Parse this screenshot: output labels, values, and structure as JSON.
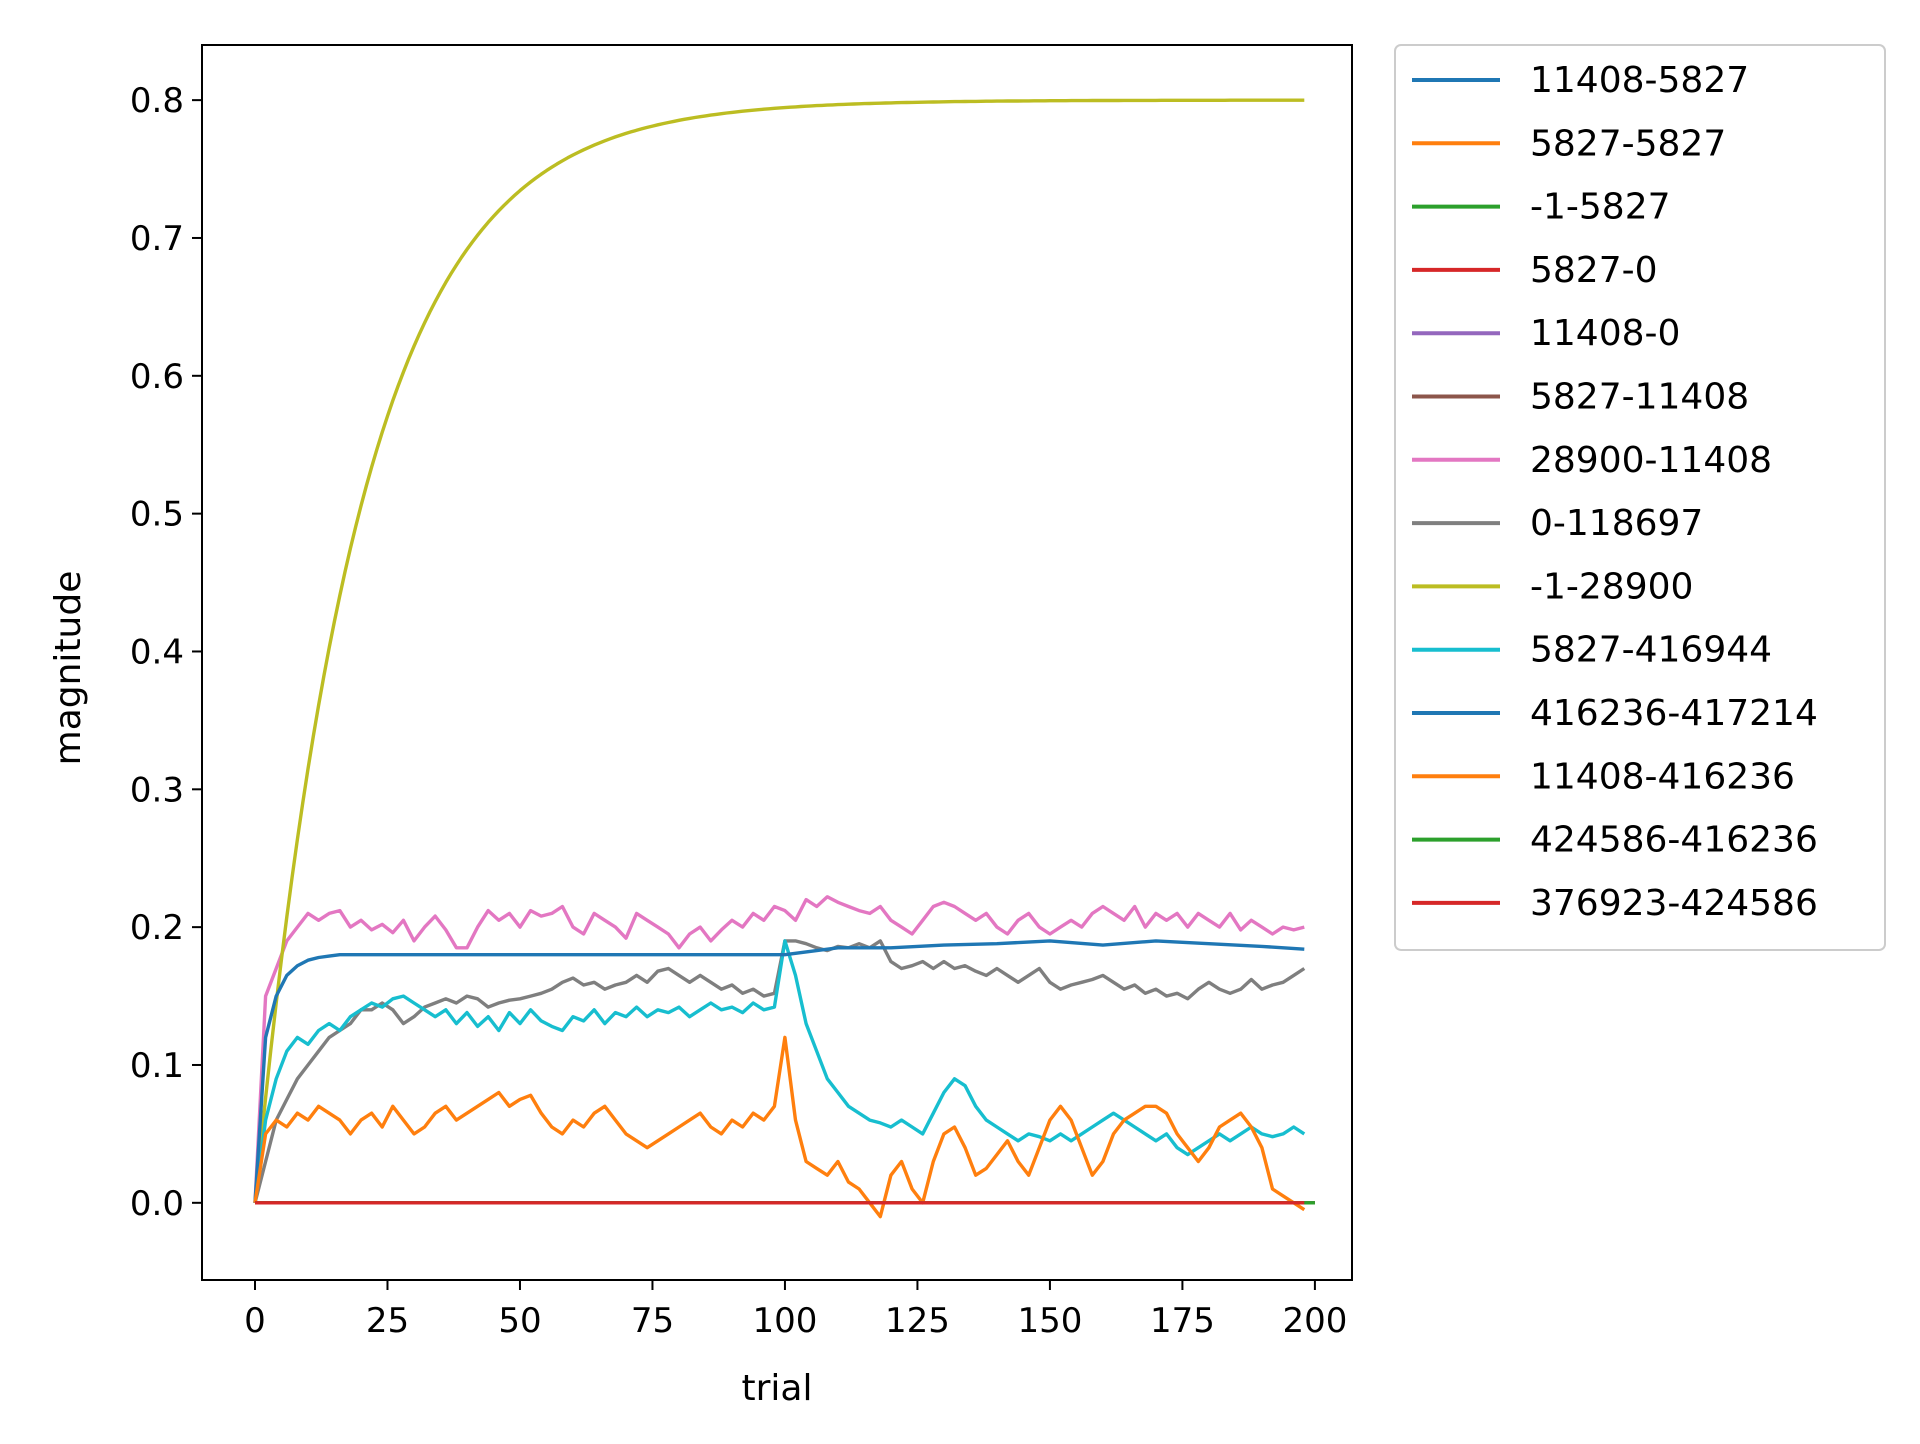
{
  "chart_data": {
    "type": "line",
    "xlabel": "trial",
    "ylabel": "magnitude",
    "xlim": [
      -10,
      207
    ],
    "ylim": [
      -0.056,
      0.84
    ],
    "xticks": [
      0,
      25,
      50,
      75,
      100,
      125,
      150,
      175,
      200
    ],
    "yticks": [
      0.0,
      0.1,
      0.2,
      0.3,
      0.4,
      0.5,
      0.6,
      0.7,
      0.8
    ],
    "grid": false,
    "legend_position": "outside-top-right",
    "series": [
      {
        "name": "11408-5827",
        "color": "#1f77b4",
        "x": [
          0,
          200
        ],
        "y": [
          0,
          0
        ]
      },
      {
        "name": "5827-5827",
        "color": "#ff7f0e",
        "x": [
          0,
          200
        ],
        "y": [
          0,
          0
        ]
      },
      {
        "name": "-1-5827",
        "color": "#2ca02c",
        "x": [
          0,
          200
        ],
        "y": [
          0,
          0
        ]
      },
      {
        "name": "5827-0",
        "color": "#d62728",
        "x": [
          0,
          200
        ],
        "y": [
          0,
          0
        ]
      },
      {
        "name": "11408-0",
        "color": "#9467bd",
        "x": [
          0,
          200
        ],
        "y": [
          0,
          0
        ]
      },
      {
        "name": "5827-11408",
        "color": "#8c564b",
        "x": [
          0,
          200
        ],
        "y": [
          0,
          0
        ]
      },
      {
        "name": "28900-11408",
        "color": "#e377c2",
        "x": [
          0,
          2,
          4,
          6,
          8,
          10,
          12,
          14,
          16,
          18,
          20,
          22,
          24,
          26,
          28,
          30,
          32,
          34,
          36,
          38,
          40,
          42,
          44,
          46,
          48,
          50,
          52,
          54,
          56,
          58,
          60,
          62,
          64,
          66,
          68,
          70,
          72,
          74,
          76,
          78,
          80,
          82,
          84,
          86,
          88,
          90,
          92,
          94,
          96,
          98,
          100,
          102,
          104,
          106,
          108,
          110,
          112,
          114,
          116,
          118,
          120,
          122,
          124,
          126,
          128,
          130,
          132,
          134,
          136,
          138,
          140,
          142,
          144,
          146,
          148,
          150,
          152,
          154,
          156,
          158,
          160,
          162,
          164,
          166,
          168,
          170,
          172,
          174,
          176,
          178,
          180,
          182,
          184,
          186,
          188,
          190,
          192,
          194,
          196,
          198
        ],
        "y": [
          0,
          0.15,
          0.17,
          0.19,
          0.2,
          0.21,
          0.205,
          0.21,
          0.212,
          0.2,
          0.205,
          0.198,
          0.202,
          0.196,
          0.205,
          0.19,
          0.2,
          0.208,
          0.198,
          0.185,
          0.185,
          0.2,
          0.212,
          0.205,
          0.21,
          0.2,
          0.212,
          0.208,
          0.21,
          0.215,
          0.2,
          0.195,
          0.21,
          0.205,
          0.2,
          0.192,
          0.21,
          0.205,
          0.2,
          0.195,
          0.185,
          0.195,
          0.2,
          0.19,
          0.198,
          0.205,
          0.2,
          0.21,
          0.205,
          0.215,
          0.212,
          0.205,
          0.22,
          0.215,
          0.222,
          0.218,
          0.215,
          0.212,
          0.21,
          0.215,
          0.205,
          0.2,
          0.195,
          0.205,
          0.215,
          0.218,
          0.215,
          0.21,
          0.205,
          0.21,
          0.2,
          0.195,
          0.205,
          0.21,
          0.2,
          0.195,
          0.2,
          0.205,
          0.2,
          0.21,
          0.215,
          0.21,
          0.205,
          0.215,
          0.2,
          0.21,
          0.205,
          0.21,
          0.2,
          0.21,
          0.205,
          0.2,
          0.21,
          0.198,
          0.205,
          0.2,
          0.195,
          0.2,
          0.198,
          0.2
        ]
      },
      {
        "name": "0-118697",
        "color": "#7f7f7f",
        "x": [
          0,
          2,
          4,
          6,
          8,
          10,
          12,
          14,
          16,
          18,
          20,
          22,
          24,
          26,
          28,
          30,
          32,
          34,
          36,
          38,
          40,
          42,
          44,
          46,
          48,
          50,
          52,
          54,
          56,
          58,
          60,
          62,
          64,
          66,
          68,
          70,
          72,
          74,
          76,
          78,
          80,
          82,
          84,
          86,
          88,
          90,
          92,
          94,
          96,
          98,
          100,
          102,
          104,
          106,
          108,
          110,
          112,
          114,
          116,
          118,
          120,
          122,
          124,
          126,
          128,
          130,
          132,
          134,
          136,
          138,
          140,
          142,
          144,
          146,
          148,
          150,
          152,
          154,
          156,
          158,
          160,
          162,
          164,
          166,
          168,
          170,
          172,
          174,
          176,
          178,
          180,
          182,
          184,
          186,
          188,
          190,
          192,
          194,
          196,
          198
        ],
        "y": [
          0,
          0.03,
          0.06,
          0.075,
          0.09,
          0.1,
          0.11,
          0.12,
          0.125,
          0.13,
          0.14,
          0.14,
          0.145,
          0.14,
          0.13,
          0.135,
          0.142,
          0.145,
          0.148,
          0.145,
          0.15,
          0.148,
          0.142,
          0.145,
          0.147,
          0.148,
          0.15,
          0.152,
          0.155,
          0.16,
          0.163,
          0.158,
          0.16,
          0.155,
          0.158,
          0.16,
          0.165,
          0.16,
          0.168,
          0.17,
          0.165,
          0.16,
          0.165,
          0.16,
          0.155,
          0.158,
          0.152,
          0.155,
          0.15,
          0.152,
          0.19,
          0.19,
          0.188,
          0.185,
          0.183,
          0.186,
          0.185,
          0.188,
          0.185,
          0.19,
          0.175,
          0.17,
          0.172,
          0.175,
          0.17,
          0.175,
          0.17,
          0.172,
          0.168,
          0.165,
          0.17,
          0.165,
          0.16,
          0.165,
          0.17,
          0.16,
          0.155,
          0.158,
          0.16,
          0.162,
          0.165,
          0.16,
          0.155,
          0.158,
          0.152,
          0.155,
          0.15,
          0.152,
          0.148,
          0.155,
          0.16,
          0.155,
          0.152,
          0.155,
          0.162,
          0.155,
          0.158,
          0.16,
          0.165,
          0.17
        ]
      },
      {
        "name": "-1-28900",
        "color": "#bcbd22",
        "generator": "saturating",
        "y_max": 0.8,
        "tau": 20
      },
      {
        "name": "5827-416944",
        "color": "#17becf",
        "x": [
          0,
          2,
          4,
          6,
          8,
          10,
          12,
          14,
          16,
          18,
          20,
          22,
          24,
          26,
          28,
          30,
          32,
          34,
          36,
          38,
          40,
          42,
          44,
          46,
          48,
          50,
          52,
          54,
          56,
          58,
          60,
          62,
          64,
          66,
          68,
          70,
          72,
          74,
          76,
          78,
          80,
          82,
          84,
          86,
          88,
          90,
          92,
          94,
          96,
          98,
          100,
          102,
          104,
          106,
          108,
          110,
          112,
          114,
          116,
          118,
          120,
          122,
          124,
          126,
          128,
          130,
          132,
          134,
          136,
          138,
          140,
          142,
          144,
          146,
          148,
          150,
          152,
          154,
          156,
          158,
          160,
          162,
          164,
          166,
          168,
          170,
          172,
          174,
          176,
          178,
          180,
          182,
          184,
          186,
          188,
          190,
          192,
          194,
          196,
          198
        ],
        "y": [
          0,
          0.06,
          0.09,
          0.11,
          0.12,
          0.115,
          0.125,
          0.13,
          0.125,
          0.135,
          0.14,
          0.145,
          0.142,
          0.148,
          0.15,
          0.145,
          0.14,
          0.135,
          0.14,
          0.13,
          0.138,
          0.128,
          0.135,
          0.125,
          0.138,
          0.13,
          0.14,
          0.132,
          0.128,
          0.125,
          0.135,
          0.132,
          0.14,
          0.13,
          0.138,
          0.135,
          0.142,
          0.135,
          0.14,
          0.138,
          0.142,
          0.135,
          0.14,
          0.145,
          0.14,
          0.142,
          0.138,
          0.145,
          0.14,
          0.142,
          0.19,
          0.165,
          0.13,
          0.11,
          0.09,
          0.08,
          0.07,
          0.065,
          0.06,
          0.058,
          0.055,
          0.06,
          0.055,
          0.05,
          0.065,
          0.08,
          0.09,
          0.085,
          0.07,
          0.06,
          0.055,
          0.05,
          0.045,
          0.05,
          0.048,
          0.045,
          0.05,
          0.045,
          0.05,
          0.055,
          0.06,
          0.065,
          0.06,
          0.055,
          0.05,
          0.045,
          0.05,
          0.04,
          0.035,
          0.04,
          0.045,
          0.05,
          0.045,
          0.05,
          0.055,
          0.05,
          0.048,
          0.05,
          0.055,
          0.05
        ]
      },
      {
        "name": "416236-417214",
        "color": "#1f77b4",
        "x": [
          0,
          2,
          4,
          6,
          8,
          10,
          12,
          14,
          16,
          18,
          20,
          30,
          40,
          50,
          60,
          70,
          80,
          90,
          100,
          110,
          120,
          130,
          140,
          150,
          160,
          170,
          180,
          190,
          198
        ],
        "y": [
          0,
          0.12,
          0.15,
          0.165,
          0.172,
          0.176,
          0.178,
          0.179,
          0.18,
          0.18,
          0.18,
          0.18,
          0.18,
          0.18,
          0.18,
          0.18,
          0.18,
          0.18,
          0.18,
          0.185,
          0.185,
          0.187,
          0.188,
          0.19,
          0.187,
          0.19,
          0.188,
          0.186,
          0.184
        ]
      },
      {
        "name": "11408-416236",
        "color": "#ff7f0e",
        "x": [
          0,
          2,
          4,
          6,
          8,
          10,
          12,
          14,
          16,
          18,
          20,
          22,
          24,
          26,
          28,
          30,
          32,
          34,
          36,
          38,
          40,
          42,
          44,
          46,
          48,
          50,
          52,
          54,
          56,
          58,
          60,
          62,
          64,
          66,
          68,
          70,
          72,
          74,
          76,
          78,
          80,
          82,
          84,
          86,
          88,
          90,
          92,
          94,
          96,
          98,
          100,
          102,
          104,
          106,
          108,
          110,
          112,
          114,
          116,
          118,
          120,
          122,
          124,
          126,
          128,
          130,
          132,
          134,
          136,
          138,
          140,
          142,
          144,
          146,
          148,
          150,
          152,
          154,
          156,
          158,
          160,
          162,
          164,
          166,
          168,
          170,
          172,
          174,
          176,
          178,
          180,
          182,
          184,
          186,
          188,
          190,
          192,
          194,
          196,
          198
        ],
        "y": [
          0,
          0.05,
          0.06,
          0.055,
          0.065,
          0.06,
          0.07,
          0.065,
          0.06,
          0.05,
          0.06,
          0.065,
          0.055,
          0.07,
          0.06,
          0.05,
          0.055,
          0.065,
          0.07,
          0.06,
          0.065,
          0.07,
          0.075,
          0.08,
          0.07,
          0.075,
          0.078,
          0.065,
          0.055,
          0.05,
          0.06,
          0.055,
          0.065,
          0.07,
          0.06,
          0.05,
          0.045,
          0.04,
          0.045,
          0.05,
          0.055,
          0.06,
          0.065,
          0.055,
          0.05,
          0.06,
          0.055,
          0.065,
          0.06,
          0.07,
          0.12,
          0.06,
          0.03,
          0.025,
          0.02,
          0.03,
          0.015,
          0.01,
          0.0,
          -0.01,
          0.02,
          0.03,
          0.01,
          0.0,
          0.03,
          0.05,
          0.055,
          0.04,
          0.02,
          0.025,
          0.035,
          0.045,
          0.03,
          0.02,
          0.04,
          0.06,
          0.07,
          0.06,
          0.04,
          0.02,
          0.03,
          0.05,
          0.06,
          0.065,
          0.07,
          0.07,
          0.065,
          0.05,
          0.04,
          0.03,
          0.04,
          0.055,
          0.06,
          0.065,
          0.055,
          0.04,
          0.01,
          0.005,
          0.0,
          -0.005
        ]
      },
      {
        "name": "424586-416236",
        "color": "#2ca02c",
        "x": [
          0,
          200
        ],
        "y": [
          0,
          0
        ]
      },
      {
        "name": "376923-424586",
        "color": "#d62728",
        "x": [
          0,
          198
        ],
        "y": [
          0,
          0
        ]
      }
    ]
  }
}
